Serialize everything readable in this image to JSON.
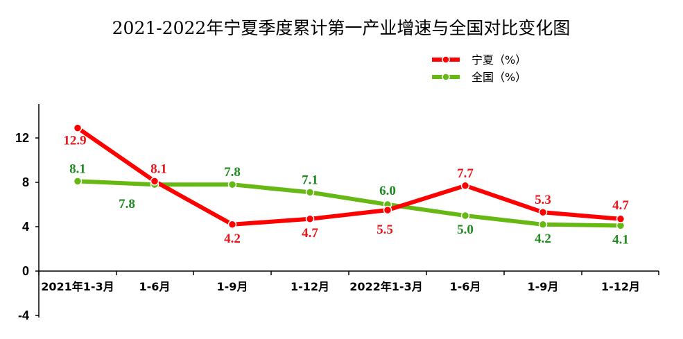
{
  "chart_data": {
    "type": "line",
    "title": "2021-2022年宁夏季度累计第一产业增速与全国对比变化图",
    "categories": [
      "2021年1-3月",
      "1-6月",
      "1-9月",
      "1-12月",
      "2022年1-3月",
      "1-6月",
      "1-9月",
      "1-12月"
    ],
    "series": [
      {
        "name": "宁夏（%）",
        "color": "#ff0000",
        "values": [
          12.9,
          8.1,
          4.2,
          4.7,
          5.5,
          7.7,
          5.3,
          4.7
        ],
        "label_color": "#e8151b"
      },
      {
        "name": "全国（%）",
        "color": "#66b813",
        "values": [
          8.1,
          7.8,
          7.8,
          7.1,
          6.0,
          5.0,
          4.2,
          4.1
        ],
        "label_color": "#1f8a1f"
      }
    ],
    "yticks": [
      12,
      8,
      4,
      0,
      -4
    ],
    "ylim": [
      -4,
      15
    ],
    "grid": false,
    "legend_position": "top-right"
  }
}
